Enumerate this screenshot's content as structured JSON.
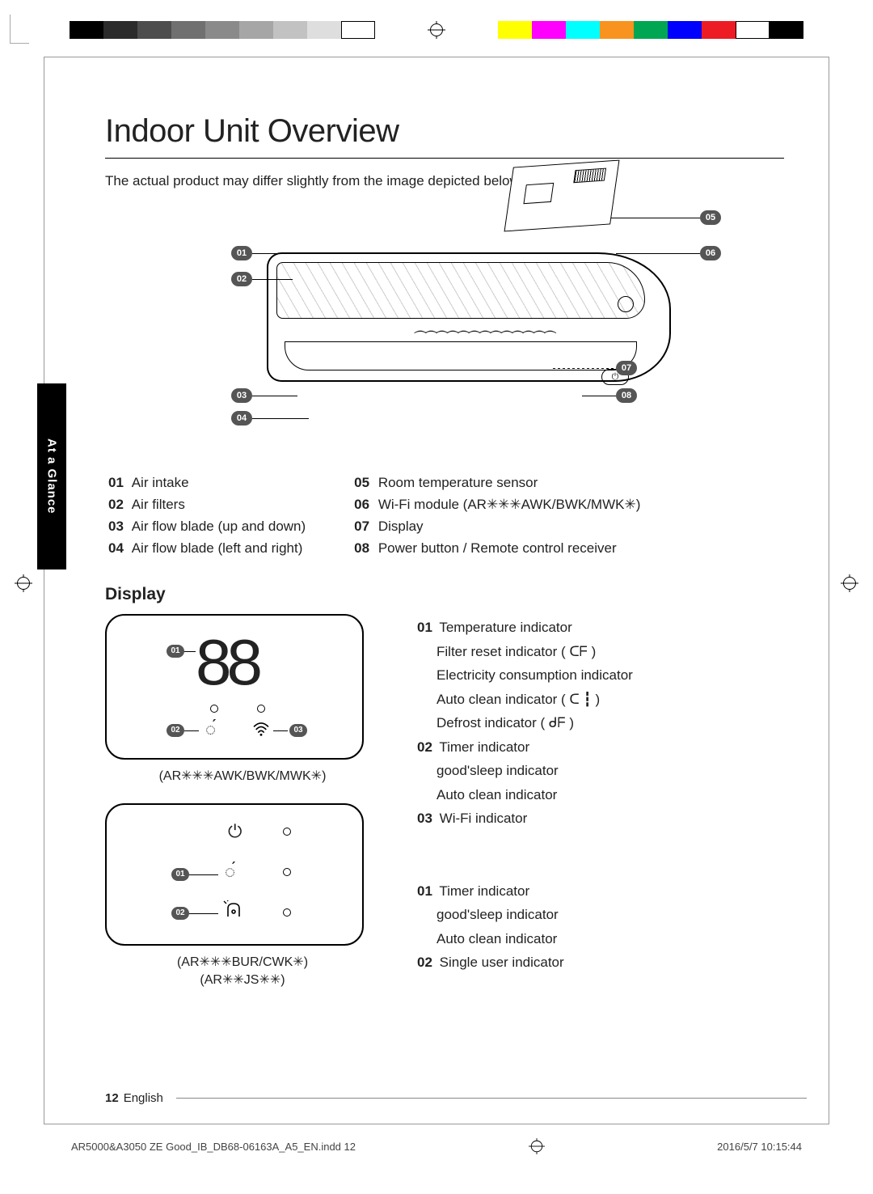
{
  "registration": {
    "gray_shades": [
      "#000000",
      "#2b2b2b",
      "#4d4d4d",
      "#707070",
      "#8a8a8a",
      "#a6a6a6",
      "#c2c2c2",
      "#dedede",
      "#ffffff"
    ],
    "colors": [
      "#ffff00",
      "#ff00ff",
      "#00ffff",
      "#f7931e",
      "#00a651",
      "#0000ff",
      "#ed1c24",
      "#ffffff",
      "#000000"
    ]
  },
  "section_tab": "At a Glance",
  "title": "Indoor Unit Overview",
  "intro": "The actual product may differ slightly from the image depicted below.",
  "callouts": {
    "c01": "01",
    "c02": "02",
    "c03": "03",
    "c04": "04",
    "c05": "05",
    "c06": "06",
    "c07": "07",
    "c08": "08"
  },
  "parts_left": [
    {
      "n": "01",
      "t": "Air intake"
    },
    {
      "n": "02",
      "t": "Air filters"
    },
    {
      "n": "03",
      "t": "Air flow blade (up and down)"
    },
    {
      "n": "04",
      "t": "Air flow blade (left and right)"
    }
  ],
  "parts_right": [
    {
      "n": "05",
      "t": "Room temperature sensor"
    },
    {
      "n": "06",
      "t": "Wi-Fi module (AR✳✳✳AWK/BWK/MWK✳)"
    },
    {
      "n": "07",
      "t": "Display"
    },
    {
      "n": "08",
      "t": "Power button / Remote control receiver"
    }
  ],
  "display_heading": "Display",
  "panel1": {
    "segment": "88",
    "c01": "01",
    "c02": "02",
    "c03": "03",
    "model": "(AR✳✳✳AWK/BWK/MWK✳)"
  },
  "panel2": {
    "c01": "01",
    "c02": "02",
    "model1": "(AR✳✳✳BUR/CWK✳)",
    "model2": "(AR✳✳JS✳✳)"
  },
  "legend1": [
    {
      "n": "01",
      "t": "Temperature indicator"
    },
    {
      "n": "",
      "t": "Filter reset indicator ( ᑕᖴ )"
    },
    {
      "n": "",
      "t": "Electricity consumption indicator"
    },
    {
      "n": "",
      "t": "Auto clean indicator ( ᑕ ┇ )"
    },
    {
      "n": "",
      "t": "Defrost indicator ( ᑯᖴ )"
    },
    {
      "n": "02",
      "t": "Timer indicator"
    },
    {
      "n": "",
      "t": "good'sleep indicator"
    },
    {
      "n": "",
      "t": "Auto clean indicator"
    },
    {
      "n": "03",
      "t": "Wi-Fi indicator"
    }
  ],
  "legend2": [
    {
      "n": "01",
      "t": "Timer indicator"
    },
    {
      "n": "",
      "t": "good'sleep indicator"
    },
    {
      "n": "",
      "t": "Auto clean indicator"
    },
    {
      "n": "02",
      "t": "Single user indicator"
    }
  ],
  "footer": {
    "page": "12",
    "lang": "English"
  },
  "print_footer": {
    "file": "AR5000&A3050 ZE Good_IB_DB68-06163A_A5_EN.indd   12",
    "stamp": "2016/5/7   10:15:44"
  }
}
